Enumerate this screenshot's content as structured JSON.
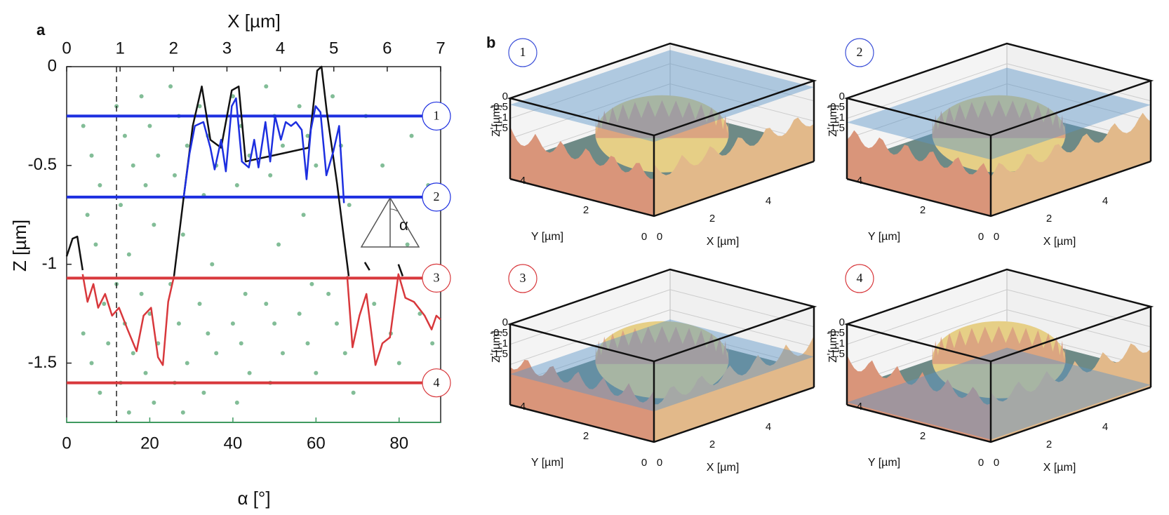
{
  "chart_data": {
    "type": "scatter-profile",
    "panel_label": "a",
    "x_top_label": "X [µm]",
    "x_top_lim": [
      0,
      7
    ],
    "x_top_ticks": [
      0,
      1,
      2,
      3,
      4,
      5,
      6,
      7
    ],
    "y_label": "Z [µm]",
    "ylim": [
      -1.8,
      0
    ],
    "yticks": [
      0,
      -0.5,
      -1,
      -1.5
    ],
    "x_label": "α [°]",
    "xlim": [
      0,
      90
    ],
    "xticks": [
      0,
      20,
      40,
      60,
      80
    ],
    "x_color": "#3f9a60",
    "scatter": {
      "color": "#3f9a60",
      "x": [
        4,
        6,
        8,
        5,
        7,
        9,
        4,
        6,
        8,
        10,
        12,
        14,
        16,
        13,
        15,
        12,
        14,
        16,
        13,
        15,
        18,
        20,
        22,
        19,
        21,
        18,
        20,
        22,
        19,
        21,
        25,
        27,
        29,
        26,
        28,
        25,
        27,
        29,
        26,
        28,
        32,
        34,
        36,
        33,
        35,
        32,
        34,
        36,
        33,
        40,
        42,
        44,
        41,
        43,
        40,
        42,
        44,
        41,
        48,
        50,
        52,
        49,
        51,
        48,
        50,
        52,
        49,
        56,
        58,
        60,
        57,
        59,
        56,
        58,
        60,
        64,
        66,
        68,
        63,
        65,
        67,
        69,
        72,
        76,
        74,
        78,
        80,
        83,
        85,
        88,
        82,
        87
      ],
      "y": [
        -0.3,
        -0.45,
        -0.6,
        -0.75,
        -0.9,
        -1.2,
        -1.35,
        -1.5,
        -1.65,
        -1.4,
        -0.2,
        -0.35,
        -0.5,
        -0.7,
        -0.95,
        -1.1,
        -1.3,
        -1.45,
        -1.6,
        -1.75,
        -0.15,
        -0.3,
        -0.45,
        -0.6,
        -0.8,
        -1.15,
        -1.25,
        -1.4,
        -1.55,
        -1.7,
        -0.1,
        -0.25,
        -0.4,
        -0.55,
        -0.85,
        -1.1,
        -1.3,
        -1.5,
        -1.6,
        -1.75,
        -0.2,
        -0.35,
        -0.5,
        -0.65,
        -1.0,
        -1.2,
        -1.35,
        -1.45,
        -1.65,
        -0.15,
        -0.3,
        -0.45,
        -0.6,
        -1.15,
        -1.3,
        -1.4,
        -1.55,
        -1.7,
        -0.1,
        -0.25,
        -0.4,
        -0.55,
        -0.9,
        -1.2,
        -1.3,
        -1.45,
        -1.6,
        -0.2,
        -0.35,
        -0.5,
        -0.75,
        -1.1,
        -1.25,
        -1.4,
        -1.55,
        -0.15,
        -0.4,
        -0.7,
        -1.15,
        -1.3,
        -1.45,
        -1.65,
        -0.25,
        -0.5,
        -1.2,
        -1.35,
        -1.5,
        -0.35,
        -1.25,
        -1.4,
        -0.9,
        -0.6
      ]
    },
    "dashed_x": 12,
    "levels": [
      {
        "label": "1",
        "value": -0.25,
        "color": "#1d2fe0"
      },
      {
        "label": "2",
        "value": -0.66,
        "color": "#1d2fe0"
      },
      {
        "label": "3",
        "value": -1.07,
        "color": "#d8383c"
      },
      {
        "label": "4",
        "value": -1.6,
        "color": "#d8383c"
      }
    ],
    "profiles": [
      {
        "color": "#111111",
        "x": [
          0,
          0.11,
          0.2,
          0.3,
          null,
          2.01,
          2.19,
          2.36,
          2.53,
          2.69,
          2.89,
          3.09,
          3.22,
          3.35,
          4.53,
          4.69,
          4.77,
          4.87,
          5.06,
          5.19,
          5.28,
          null,
          5.58,
          5.67,
          null,
          6.21,
          6.29
        ],
        "y": [
          -0.96,
          -0.87,
          -0.86,
          -1.03,
          null,
          -1.06,
          -0.66,
          -0.3,
          -0.1,
          -0.37,
          -0.41,
          -0.12,
          -0.1,
          -0.48,
          -0.41,
          -0.02,
          0,
          -0.23,
          -0.59,
          -0.87,
          -1.06,
          null,
          -0.99,
          -1.03,
          null,
          -1.0,
          -1.06
        ]
      },
      {
        "color": "#1d2fe0",
        "x": [
          2.19,
          2.3,
          2.4,
          2.56,
          2.69,
          2.77,
          2.89,
          2.98,
          3.09,
          3.17,
          3.28,
          3.41,
          3.51,
          3.59,
          3.72,
          3.81,
          3.9,
          4.01,
          4.1,
          4.2,
          4.29,
          4.4,
          4.49,
          4.57,
          4.66,
          4.75,
          4.86,
          4.99,
          5.1,
          5.19
        ],
        "y": [
          -0.66,
          -0.44,
          -0.3,
          -0.28,
          -0.41,
          -0.52,
          -0.37,
          -0.53,
          -0.2,
          -0.16,
          -0.48,
          -0.51,
          -0.37,
          -0.51,
          -0.28,
          -0.48,
          -0.25,
          -0.37,
          -0.28,
          -0.3,
          -0.28,
          -0.32,
          -0.57,
          -0.32,
          -0.2,
          -0.23,
          -0.55,
          -0.43,
          -0.3,
          -0.69
        ]
      },
      {
        "color": "#d8383c",
        "x": [
          0.3,
          0.39,
          0.5,
          0.59,
          0.72,
          0.85,
          0.98,
          1.14,
          1.31,
          1.44,
          1.58,
          1.71,
          1.8,
          1.9,
          2.01,
          null,
          5.25,
          5.35,
          5.48,
          5.61,
          5.78,
          5.91,
          6.05,
          6.21,
          6.34,
          6.5,
          6.7,
          6.83,
          6.92,
          7
        ],
        "y": [
          -1.05,
          -1.19,
          -1.1,
          -1.22,
          -1.15,
          -1.26,
          -1.22,
          -1.33,
          -1.44,
          -1.26,
          -1.22,
          -1.47,
          -1.51,
          -1.19,
          -1.06,
          null,
          -1.06,
          -1.42,
          -1.26,
          -1.15,
          -1.51,
          -1.4,
          -1.37,
          -1.05,
          -1.17,
          -1.19,
          -1.26,
          -1.33,
          -1.26,
          -1.28
        ]
      }
    ],
    "inset_label": "α"
  },
  "panel_b": {
    "label": "b",
    "plots": [
      {
        "number": "1",
        "color": "#3b4fd8",
        "z_label": "Z [µm]",
        "z_ticks": [
          0,
          -0.5,
          -1,
          -1.5
        ],
        "y_label": "Y [µm]",
        "y_ticks": [
          4,
          2,
          0
        ],
        "x_label": "X [µm]",
        "x_ticks": [
          0,
          2,
          4
        ]
      },
      {
        "number": "2",
        "color": "#3b4fd8",
        "z_label": "Z [µm]",
        "z_ticks": [
          0,
          -0.5,
          -1,
          -1.5
        ],
        "y_label": "Y [µm]",
        "y_ticks": [
          4,
          2,
          0
        ],
        "x_label": "X [µm]",
        "x_ticks": [
          0,
          2,
          4
        ]
      },
      {
        "number": "3",
        "color": "#d8383c",
        "z_label": "Z [µm]",
        "z_ticks": [
          0,
          -0.5,
          -1,
          -1.5
        ],
        "y_label": "Y [µm]",
        "y_ticks": [
          4,
          2,
          0
        ],
        "x_label": "X [µm]",
        "x_ticks": [
          0,
          2,
          4
        ]
      },
      {
        "number": "4",
        "color": "#d8383c",
        "z_label": "Z [µm]",
        "z_ticks": [
          0,
          -0.5,
          -1,
          -1.5
        ],
        "y_label": "Y [µm]",
        "y_ticks": [
          4,
          2,
          0
        ],
        "x_label": "X [µm]",
        "x_ticks": [
          0,
          2,
          4
        ]
      }
    ]
  }
}
